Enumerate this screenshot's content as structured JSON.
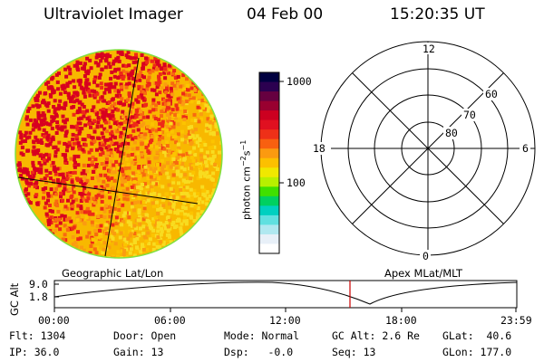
{
  "header": {
    "instrument": "Ultraviolet Imager",
    "date": "04 Feb 00",
    "time": "15:20:35 UT"
  },
  "colorbar": {
    "tick_1000": "1000",
    "tick_100": "100",
    "unit_label": "photon cm",
    "unit_exp1": "−2",
    "unit_mid": "s",
    "unit_exp2": "−1",
    "colors": [
      "#000040",
      "#2b0050",
      "#660040",
      "#990030",
      "#cc0020",
      "#e01020",
      "#ee3018",
      "#f86010",
      "#fb9a10",
      "#fcc000",
      "#f0e800",
      "#b8f000",
      "#40e000",
      "#00d060",
      "#00d0c0",
      "#60e0e0",
      "#b0e8f0",
      "#e8f0f8",
      "#ffffff"
    ]
  },
  "polar": {
    "mlt_12": "12",
    "mlt_18": "18",
    "mlt_6": "6",
    "mlt_0": "0",
    "lat_60": "60",
    "lat_70": "70",
    "lat_80": "80"
  },
  "timeline": {
    "left_title": "Geographic Lat/Lon",
    "right_title": "Apex MLat/MLT",
    "ylabel": "GC Alt",
    "ytick_top": "9.0",
    "ytick_bottom": "1.8",
    "times": [
      "00:00",
      "06:00",
      "12:00",
      "18:00",
      "23:59"
    ],
    "current_marker_color": "#cc0000"
  },
  "meta": {
    "flt": "Flt: 1304",
    "ip": "IP: 36.0",
    "door": "Door: Open",
    "gain": "Gain: 13",
    "mode": "Mode: Normal",
    "dsp": "Dsp:   -0.0",
    "gc_alt": "GC Alt: 2.6 Re",
    "seq": "Seq: 13",
    "glat": "GLat:  40.6",
    "glon": "GLon: 177.0"
  }
}
